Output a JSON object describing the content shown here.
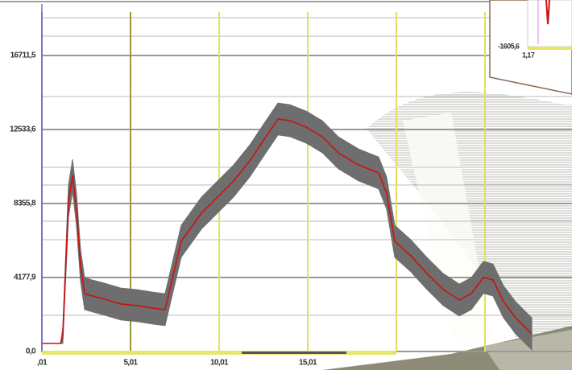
{
  "chart_data": {
    "type": "line",
    "x": [
      0.01,
      1.06,
      1.19,
      1.51,
      1.74,
      1.96,
      2.19,
      2.42,
      2.87,
      3.56,
      4.46,
      5.37,
      6.28,
      6.96,
      7.28,
      7.87,
      9.01,
      9.92,
      10.83,
      11.74,
      12.65,
      13.33,
      14.01,
      14.92,
      15.83,
      16.74,
      17.87,
      19.01,
      19.46,
      19.92,
      20.83,
      21.74,
      22.65,
      23.56,
      24.24,
      24.92,
      25.46,
      26.05,
      26.74,
      27.42,
      27.65
    ],
    "series": [
      {
        "color": "#cc1111",
        "values": [
          454,
          454,
          900,
          8490,
          9945,
          8040,
          4860,
          3270,
          3133,
          2950,
          2680,
          2590,
          2450,
          2360,
          3725,
          6220,
          7810,
          8720,
          9630,
          10760,
          12125,
          13125,
          13030,
          12670,
          12125,
          11215,
          10535,
          10080,
          8945,
          6220,
          5400,
          4400,
          3500,
          2905,
          3270,
          4180,
          4040,
          2815,
          1905,
          1225,
          1000
        ]
      }
    ],
    "band": {
      "color": "#6e6e6e",
      "upper": [
        454,
        454,
        1350,
        9390,
        10845,
        8940,
        5760,
        4170,
        4033,
        3850,
        3580,
        3490,
        3350,
        3260,
        4625,
        7120,
        8710,
        9620,
        10530,
        11660,
        13025,
        14025,
        13930,
        13570,
        13025,
        12115,
        11435,
        10980,
        9845,
        7120,
        6300,
        5300,
        4400,
        3805,
        4170,
        5080,
        4940,
        3715,
        2805,
        2125,
        1900
      ],
      "lower": [
        454,
        454,
        454,
        7590,
        9045,
        7140,
        3960,
        2370,
        2233,
        2050,
        1780,
        1690,
        1550,
        1460,
        2825,
        5320,
        6910,
        7820,
        8730,
        9860,
        11225,
        12225,
        12130,
        11770,
        11225,
        10315,
        9635,
        9180,
        8045,
        5320,
        4500,
        3500,
        2600,
        2005,
        2370,
        3280,
        3140,
        1915,
        1005,
        325,
        100
      ]
    },
    "xlim": [
      0.01,
      29.92
    ],
    "ylim": [
      0,
      19617
    ],
    "xticks": [
      {
        "value": 0.01,
        "label": ",01"
      },
      {
        "value": 5.01,
        "label": "5,01"
      },
      {
        "value": 10.01,
        "label": "10,01"
      },
      {
        "value": 15.01,
        "label": "15,01"
      }
    ],
    "x_minor_gridlines": [
      20.01,
      25.01
    ],
    "yticks": [
      {
        "value": 0,
        "label": "0,0"
      },
      {
        "value": 4177.9,
        "label": "4177,9"
      },
      {
        "value": 8355.8,
        "label": "8355,8"
      },
      {
        "value": 12533.6,
        "label": "12533,6"
      },
      {
        "value": 16711.5,
        "label": "16711,5"
      }
    ],
    "grid": true
  },
  "inset": {
    "y_label": "-1605,6",
    "x_label": "1,17"
  }
}
